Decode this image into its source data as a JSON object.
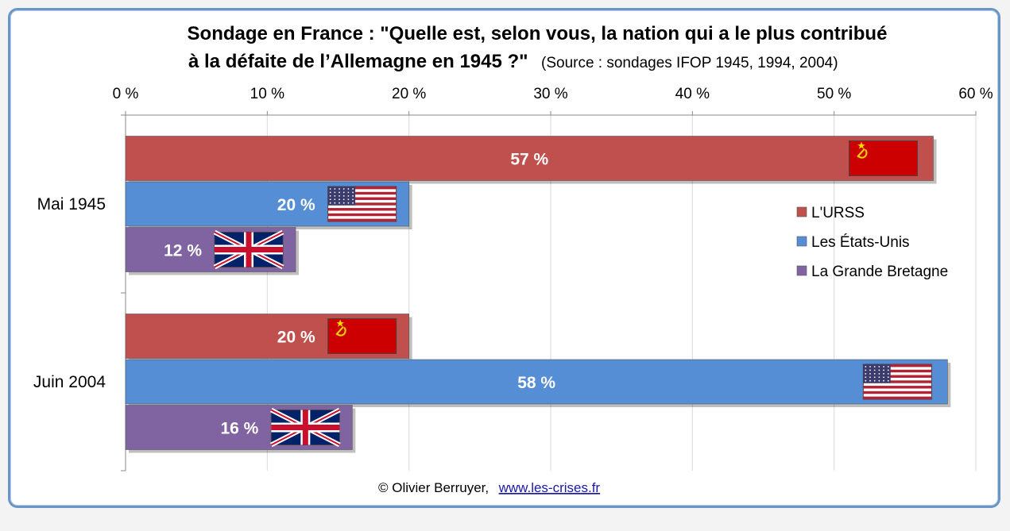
{
  "chart_data": {
    "type": "bar",
    "orientation": "horizontal",
    "title_line1": "Sondage en France : \"Quelle est, selon vous, la nation qui a le plus contribué",
    "title_line2": "à la défaite de l’Allemagne en 1945 ?\"",
    "source": "(Source : sondages IFOP 1945, 1994, 2004)",
    "categories": [
      "Mai 1945",
      "Juin 2004"
    ],
    "series": [
      {
        "name": "L'URSS",
        "color": "#c0504d",
        "flag": "ussr-flag",
        "values": [
          57,
          20
        ],
        "labels": [
          "57 %",
          "20 %"
        ]
      },
      {
        "name": "Les États-Unis",
        "color": "#558ed5",
        "flag": "usa-flag",
        "values": [
          20,
          58
        ],
        "labels": [
          "20 %",
          "58 %"
        ]
      },
      {
        "name": "La Grande Bretagne",
        "color": "#8064a2",
        "flag": "uk-flag",
        "values": [
          12,
          16
        ],
        "labels": [
          "12 %",
          "16 %"
        ]
      }
    ],
    "x_ticks": [
      "0 %",
      "10 %",
      "20 %",
      "30 %",
      "40 %",
      "50 %",
      "60 %"
    ],
    "xlim": [
      0,
      60
    ],
    "x_axis_position": "top",
    "gridlines": "vertical",
    "legend_position": "right"
  },
  "credit": {
    "author": "© Olivier Berruyer,",
    "link": "www.les-crises.fr"
  }
}
